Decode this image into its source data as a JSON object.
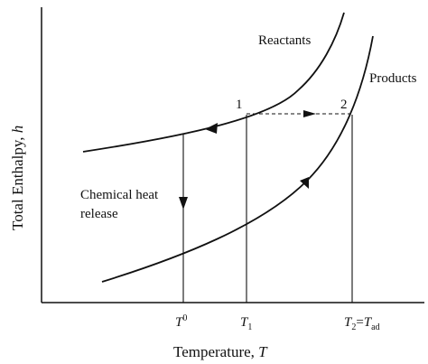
{
  "diagram": {
    "y_axis_title": "Total Enthalpy, h",
    "y_axis_title_main": "Total Enthalpy, ",
    "y_axis_title_var": "h",
    "x_axis_title_main": "Temperature, ",
    "x_axis_title_var": "T",
    "curves": {
      "reactants": "Reactants",
      "products": "Products"
    },
    "points": {
      "p1": "1",
      "p2": "2"
    },
    "annotation_line1": "Chemical heat",
    "annotation_line2": "release",
    "ticks": {
      "t0_var": "T",
      "t0_sup": "0",
      "t1_var": "T",
      "t1_sub": "1",
      "t2_var": "T",
      "t2_sub": "2",
      "t2_eq": "=",
      "tad_var": "T",
      "tad_sub": "ad"
    }
  }
}
